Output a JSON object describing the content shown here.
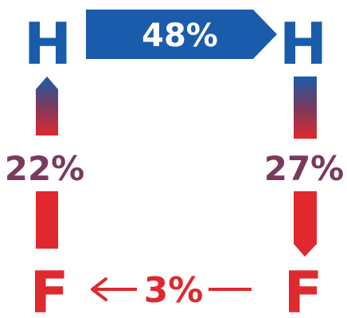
{
  "nodes": {
    "top_left": "H",
    "top_right": "H",
    "bottom_left": "F",
    "bottom_right": "F"
  },
  "flows": {
    "top_h_to_h": "48%",
    "left_f_to_h": "22%",
    "right_h_to_f": "27%",
    "bottom_f_to_f": "3%"
  },
  "colors": {
    "blue": "#1a5cab",
    "red": "#e0282f",
    "mid": "#7a3a5e",
    "white": "#ffffff"
  }
}
